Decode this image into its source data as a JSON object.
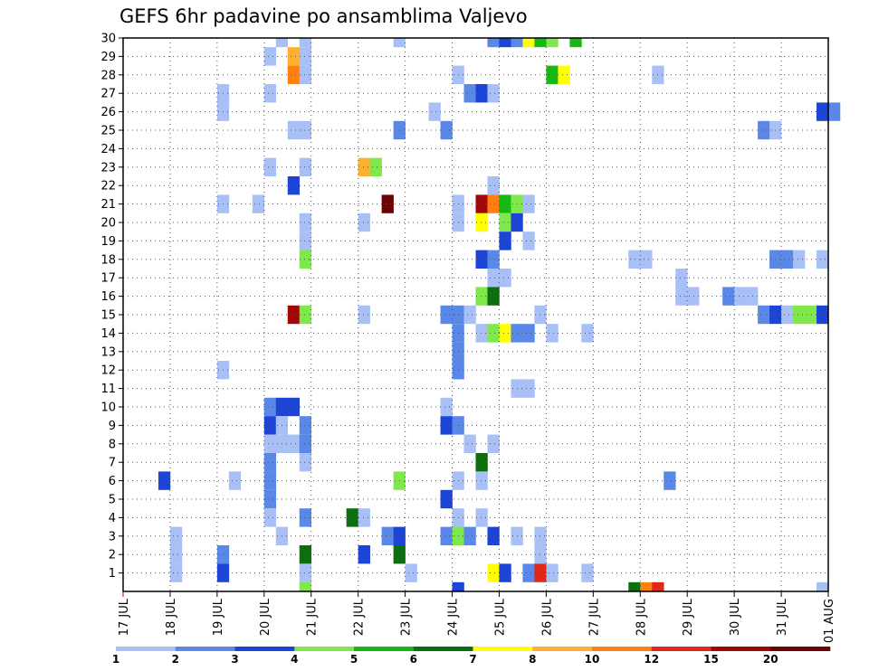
{
  "chart_data": {
    "type": "heatmap",
    "title": "GEFS 6hr padavine po ansamblima Valjevo",
    "x_tick_labels": [
      "17 JUL",
      "18 JUL",
      "19 JUL",
      "20 JUL",
      "21 JUL",
      "22 JUL",
      "23 JUL",
      "24 JUL",
      "25 JUL",
      "26 JUL",
      "27 JUL",
      "28 JUL",
      "29 JUL",
      "30 JUL",
      "31 JUL",
      "01 AUG"
    ],
    "y_tick_labels": [
      "1",
      "2",
      "3",
      "4",
      "5",
      "6",
      "7",
      "8",
      "9",
      "10",
      "11",
      "12",
      "13",
      "14",
      "15",
      "16",
      "17",
      "18",
      "19",
      "20",
      "21",
      "22",
      "23",
      "24",
      "25",
      "26",
      "27",
      "28",
      "29",
      "30"
    ],
    "x_range": [
      0,
      15
    ],
    "y_range": [
      0,
      30
    ],
    "grid": true,
    "grid_style": "dotted",
    "legend_position": "bottom",
    "color_levels": [
      1,
      2,
      3,
      4,
      5,
      6,
      7,
      8,
      10,
      12,
      15,
      20
    ],
    "colors": [
      "#a8c0f5",
      "#5a88e8",
      "#1c44d6",
      "#7fe84a",
      "#16b816",
      "#0c6e0c",
      "#ffff00",
      "#ffb030",
      "#ff7f10",
      "#e02818",
      "#a00808",
      "#6a0404"
    ],
    "cells": [
      [
        3.25,
        30,
        "#a8c0f5"
      ],
      [
        3.75,
        30,
        "#a8c0f5"
      ],
      [
        5.75,
        30,
        "#a8c0f5"
      ],
      [
        7.75,
        30,
        "#5a88e8"
      ],
      [
        8,
        30,
        "#1c44d6"
      ],
      [
        8.25,
        30,
        "#5a88e8"
      ],
      [
        8.5,
        30,
        "#ffff00"
      ],
      [
        8.75,
        30,
        "#16b816"
      ],
      [
        9,
        30,
        "#7fe84a"
      ],
      [
        9.5,
        30,
        "#16b816"
      ],
      [
        3,
        29,
        "#a8c0f5"
      ],
      [
        3.5,
        29,
        "#ffb030"
      ],
      [
        3.75,
        29,
        "#a8c0f5"
      ],
      [
        3.5,
        28,
        "#ff7f10"
      ],
      [
        3.75,
        28,
        "#a8c0f5"
      ],
      [
        7,
        28,
        "#a8c0f5"
      ],
      [
        9,
        28,
        "#16b816"
      ],
      [
        9.25,
        28,
        "#ffff00"
      ],
      [
        11.25,
        28,
        "#a8c0f5"
      ],
      [
        2,
        27,
        "#a8c0f5"
      ],
      [
        3,
        27,
        "#a8c0f5"
      ],
      [
        7.25,
        27,
        "#5a88e8"
      ],
      [
        7.5,
        27,
        "#1c44d6"
      ],
      [
        7.75,
        27,
        "#a8c0f5"
      ],
      [
        2,
        26,
        "#a8c0f5"
      ],
      [
        6.5,
        26,
        "#a8c0f5"
      ],
      [
        14.75,
        26,
        "#1c44d6"
      ],
      [
        15,
        26,
        "#5a88e8"
      ],
      [
        3.5,
        25,
        "#a8c0f5"
      ],
      [
        3.75,
        25,
        "#a8c0f5"
      ],
      [
        5.75,
        25,
        "#5a88e8"
      ],
      [
        6.75,
        25,
        "#5a88e8"
      ],
      [
        13.5,
        25,
        "#5a88e8"
      ],
      [
        13.75,
        25,
        "#a8c0f5"
      ],
      [
        3,
        23,
        "#a8c0f5"
      ],
      [
        3.75,
        23,
        "#a8c0f5"
      ],
      [
        5,
        23,
        "#ffb030"
      ],
      [
        5.25,
        23,
        "#7fe84a"
      ],
      [
        3.5,
        22,
        "#1c44d6"
      ],
      [
        7.75,
        22,
        "#a8c0f5"
      ],
      [
        2,
        21,
        "#a8c0f5"
      ],
      [
        2.75,
        21,
        "#a8c0f5"
      ],
      [
        5.5,
        21,
        "#6a0404"
      ],
      [
        7,
        21,
        "#a8c0f5"
      ],
      [
        7.5,
        21,
        "#a00808"
      ],
      [
        7.75,
        21,
        "#ff7f10"
      ],
      [
        8,
        21,
        "#16b816"
      ],
      [
        8.25,
        21,
        "#7fe84a"
      ],
      [
        8.5,
        21,
        "#a8c0f5"
      ],
      [
        3.75,
        20,
        "#a8c0f5"
      ],
      [
        5,
        20,
        "#a8c0f5"
      ],
      [
        7,
        20,
        "#a8c0f5"
      ],
      [
        7.5,
        20,
        "#ffff00"
      ],
      [
        8,
        20,
        "#7fe84a"
      ],
      [
        8.25,
        20,
        "#1c44d6"
      ],
      [
        3.75,
        19,
        "#a8c0f5"
      ],
      [
        8,
        19,
        "#1c44d6"
      ],
      [
        8.5,
        19,
        "#a8c0f5"
      ],
      [
        3.75,
        18,
        "#7fe84a"
      ],
      [
        7.5,
        18,
        "#1c44d6"
      ],
      [
        7.75,
        18,
        "#5a88e8"
      ],
      [
        10.75,
        18,
        "#a8c0f5"
      ],
      [
        11,
        18,
        "#a8c0f5"
      ],
      [
        13.75,
        18,
        "#5a88e8"
      ],
      [
        14,
        18,
        "#5a88e8"
      ],
      [
        14.25,
        18,
        "#a8c0f5"
      ],
      [
        14.75,
        18,
        "#a8c0f5"
      ],
      [
        7.75,
        17,
        "#a8c0f5"
      ],
      [
        8,
        17,
        "#a8c0f5"
      ],
      [
        11.75,
        17,
        "#a8c0f5"
      ],
      [
        7.5,
        16,
        "#7fe84a"
      ],
      [
        7.75,
        16,
        "#0c6e0c"
      ],
      [
        11.75,
        16,
        "#a8c0f5"
      ],
      [
        12,
        16,
        "#a8c0f5"
      ],
      [
        12.75,
        16,
        "#5a88e8"
      ],
      [
        13,
        16,
        "#a8c0f5"
      ],
      [
        13.25,
        16,
        "#a8c0f5"
      ],
      [
        3.5,
        15,
        "#a00808"
      ],
      [
        3.75,
        15,
        "#7fe84a"
      ],
      [
        5,
        15,
        "#a8c0f5"
      ],
      [
        6.75,
        15,
        "#5a88e8"
      ],
      [
        7,
        15,
        "#5a88e8"
      ],
      [
        7.25,
        15,
        "#a8c0f5"
      ],
      [
        8.75,
        15,
        "#a8c0f5"
      ],
      [
        13.5,
        15,
        "#5a88e8"
      ],
      [
        13.75,
        15,
        "#1c44d6"
      ],
      [
        14,
        15,
        "#a8c0f5"
      ],
      [
        14.25,
        15,
        "#7fe84a"
      ],
      [
        14.5,
        15,
        "#7fe84a"
      ],
      [
        14.75,
        15,
        "#1c44d6"
      ],
      [
        7,
        14,
        "#5a88e8"
      ],
      [
        7.5,
        14,
        "#a8c0f5"
      ],
      [
        7.75,
        14,
        "#7fe84a"
      ],
      [
        8,
        14,
        "#ffff00"
      ],
      [
        8.25,
        14,
        "#5a88e8"
      ],
      [
        8.5,
        14,
        "#5a88e8"
      ],
      [
        9,
        14,
        "#a8c0f5"
      ],
      [
        9.75,
        14,
        "#a8c0f5"
      ],
      [
        7,
        13,
        "#5a88e8"
      ],
      [
        2,
        12,
        "#a8c0f5"
      ],
      [
        7,
        12,
        "#5a88e8"
      ],
      [
        8.25,
        11,
        "#a8c0f5"
      ],
      [
        8.5,
        11,
        "#a8c0f5"
      ],
      [
        3,
        10,
        "#5a88e8"
      ],
      [
        3.25,
        10,
        "#1c44d6"
      ],
      [
        3.5,
        10,
        "#1c44d6"
      ],
      [
        6.75,
        10,
        "#a8c0f5"
      ],
      [
        3,
        9,
        "#1c44d6"
      ],
      [
        3.25,
        9,
        "#a8c0f5"
      ],
      [
        3.75,
        9,
        "#5a88e8"
      ],
      [
        6.75,
        9,
        "#1c44d6"
      ],
      [
        7,
        9,
        "#5a88e8"
      ],
      [
        3,
        8,
        "#a8c0f5"
      ],
      [
        3.25,
        8,
        "#a8c0f5"
      ],
      [
        3.5,
        8,
        "#a8c0f5"
      ],
      [
        3.75,
        8,
        "#5a88e8"
      ],
      [
        7.25,
        8,
        "#a8c0f5"
      ],
      [
        7.75,
        8,
        "#a8c0f5"
      ],
      [
        3,
        7,
        "#5a88e8"
      ],
      [
        3.75,
        7,
        "#a8c0f5"
      ],
      [
        7.5,
        7,
        "#0c6e0c"
      ],
      [
        0.75,
        6,
        "#1c44d6"
      ],
      [
        2.25,
        6,
        "#a8c0f5"
      ],
      [
        3,
        6,
        "#5a88e8"
      ],
      [
        5.75,
        6,
        "#7fe84a"
      ],
      [
        7,
        6,
        "#a8c0f5"
      ],
      [
        7.5,
        6,
        "#a8c0f5"
      ],
      [
        11.5,
        6,
        "#5a88e8"
      ],
      [
        3,
        5,
        "#5a88e8"
      ],
      [
        6.75,
        5,
        "#1c44d6"
      ],
      [
        3,
        4,
        "#a8c0f5"
      ],
      [
        3.75,
        4,
        "#5a88e8"
      ],
      [
        4.75,
        4,
        "#0c6e0c"
      ],
      [
        5,
        4,
        "#a8c0f5"
      ],
      [
        7,
        4,
        "#a8c0f5"
      ],
      [
        7.5,
        4,
        "#a8c0f5"
      ],
      [
        1,
        3,
        "#a8c0f5"
      ],
      [
        3.25,
        3,
        "#a8c0f5"
      ],
      [
        5.5,
        3,
        "#5a88e8"
      ],
      [
        5.75,
        3,
        "#1c44d6"
      ],
      [
        6.75,
        3,
        "#5a88e8"
      ],
      [
        7,
        3,
        "#7fe84a"
      ],
      [
        7.25,
        3,
        "#5a88e8"
      ],
      [
        7.75,
        3,
        "#1c44d6"
      ],
      [
        8.25,
        3,
        "#a8c0f5"
      ],
      [
        8.75,
        3,
        "#a8c0f5"
      ],
      [
        1,
        2,
        "#a8c0f5"
      ],
      [
        2,
        2,
        "#5a88e8"
      ],
      [
        3.75,
        2,
        "#0c6e0c"
      ],
      [
        5,
        2,
        "#1c44d6"
      ],
      [
        5.75,
        2,
        "#0c6e0c"
      ],
      [
        8.75,
        2,
        "#a8c0f5"
      ],
      [
        1,
        1,
        "#a8c0f5"
      ],
      [
        2,
        1,
        "#1c44d6"
      ],
      [
        3.75,
        1,
        "#a8c0f5"
      ],
      [
        6,
        1,
        "#a8c0f5"
      ],
      [
        7.75,
        1,
        "#ffff00"
      ],
      [
        8,
        1,
        "#1c44d6"
      ],
      [
        8.5,
        1,
        "#5a88e8"
      ],
      [
        8.75,
        1,
        "#e02818"
      ],
      [
        9,
        1,
        "#a8c0f5"
      ],
      [
        9.75,
        1,
        "#a8c0f5"
      ],
      [
        3.75,
        0,
        "#7fe84a"
      ],
      [
        7,
        0,
        "#1c44d6"
      ],
      [
        10.75,
        0,
        "#0c6e0c"
      ],
      [
        11,
        0,
        "#ff7f10"
      ],
      [
        11.25,
        0,
        "#e02818"
      ],
      [
        14.75,
        0,
        "#a8c0f5"
      ]
    ]
  }
}
